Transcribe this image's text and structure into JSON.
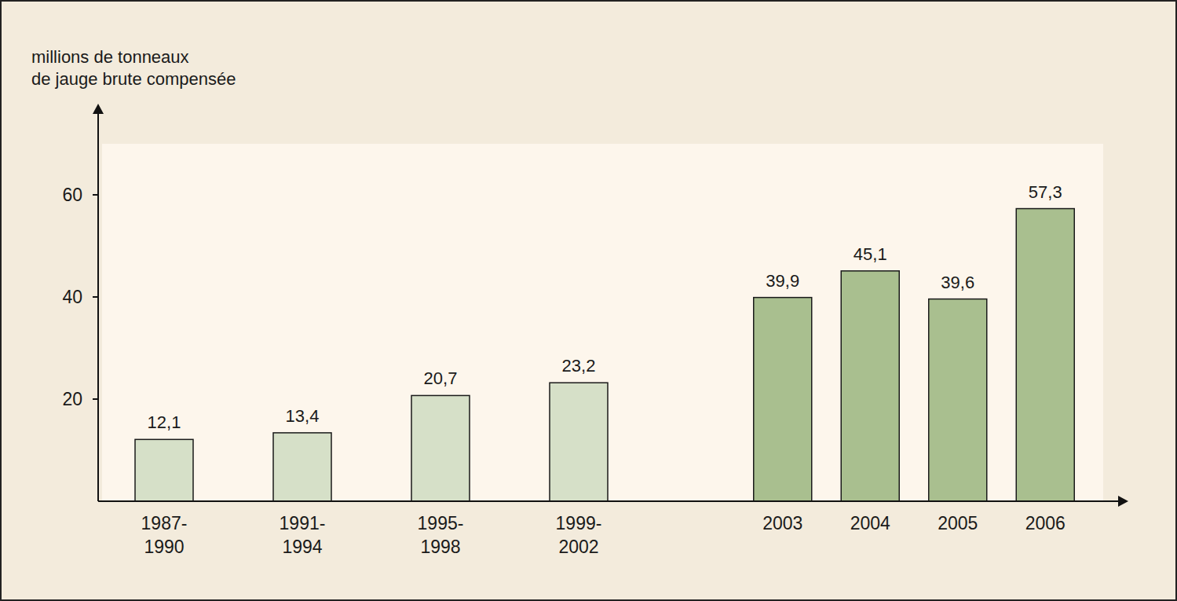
{
  "chart_data": {
    "type": "bar",
    "y_label": "millions de tonneaux\nde jauge brute compensée",
    "categories": [
      "1987-\n1990",
      "1991-\n1994",
      "1995-\n1998",
      "1999-\n2002",
      "2003",
      "2004",
      "2005",
      "2006"
    ],
    "values": [
      12.1,
      13.4,
      20.7,
      23.2,
      39.9,
      45.1,
      39.6,
      57.3
    ],
    "value_labels": [
      "12,1",
      "13,4",
      "20,7",
      "23,2",
      "39,9",
      "45,1",
      "39,6",
      "57,3"
    ],
    "colors": [
      "#d6e0c8",
      "#d6e0c8",
      "#d6e0c8",
      "#d6e0c8",
      "#a9bf8f",
      "#a9bf8f",
      "#a9bf8f",
      "#a9bf8f"
    ],
    "ylim": [
      0,
      70
    ],
    "yticks": [
      20,
      40,
      60
    ],
    "grid": false,
    "data_labels": true
  }
}
